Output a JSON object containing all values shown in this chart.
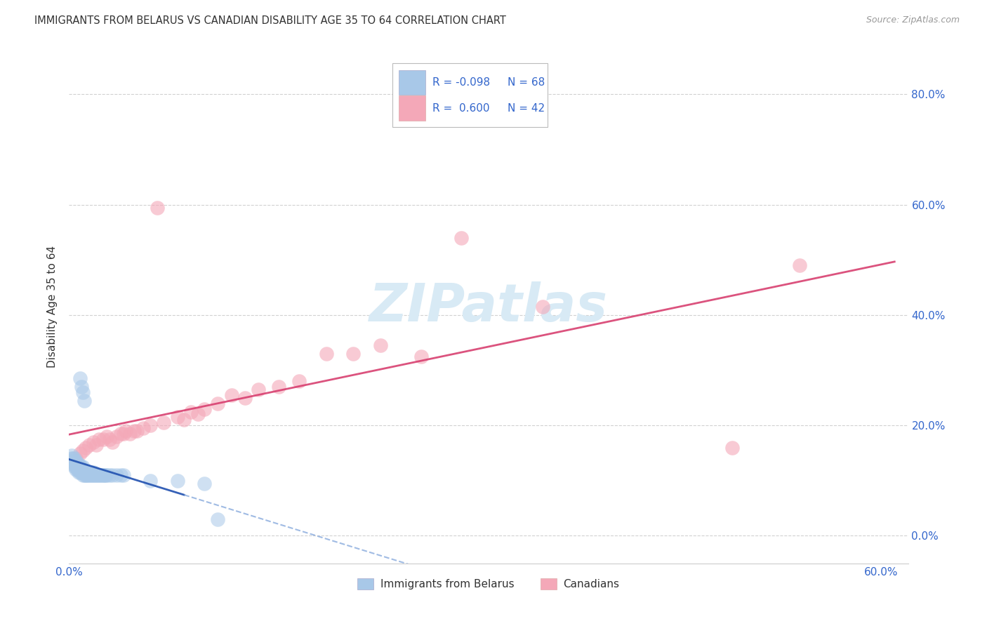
{
  "title": "IMMIGRANTS FROM BELARUS VS CANADIAN DISABILITY AGE 35 TO 64 CORRELATION CHART",
  "source": "Source: ZipAtlas.com",
  "ylabel": "Disability Age 35 to 64",
  "xlim": [
    0.0,
    0.62
  ],
  "ylim": [
    -0.05,
    0.88
  ],
  "yticks": [
    0.0,
    0.2,
    0.4,
    0.6,
    0.8
  ],
  "xticks": [
    0.0,
    0.1,
    0.2,
    0.3,
    0.4,
    0.5,
    0.6
  ],
  "right_ytick_labels": [
    "0.0%",
    "20.0%",
    "40.0%",
    "60.0%",
    "80.0%"
  ],
  "blue_color": "#A8C8E8",
  "pink_color": "#F4A8B8",
  "blue_line_solid_color": "#2050B0",
  "blue_line_dash_color": "#88AADD",
  "pink_line_color": "#D84070",
  "watermark_text": "ZIPatlas",
  "watermark_color": "#D8EAF5",
  "legend_r1": "R = -0.098",
  "legend_n1": "N = 68",
  "legend_r2": "R =  0.600",
  "legend_n2": "N = 42",
  "label_blue": "Immigrants from Belarus",
  "label_pink": "Canadians",
  "text_color_dark": "#333333",
  "text_color_blue": "#3366CC",
  "grid_color": "#CCCCCC",
  "blue_x": [
    0.001,
    0.002,
    0.002,
    0.003,
    0.003,
    0.003,
    0.004,
    0.004,
    0.004,
    0.004,
    0.005,
    0.005,
    0.005,
    0.005,
    0.006,
    0.006,
    0.006,
    0.007,
    0.007,
    0.007,
    0.007,
    0.008,
    0.008,
    0.008,
    0.009,
    0.009,
    0.009,
    0.01,
    0.01,
    0.01,
    0.01,
    0.011,
    0.011,
    0.012,
    0.012,
    0.013,
    0.013,
    0.014,
    0.014,
    0.015,
    0.015,
    0.016,
    0.017,
    0.018,
    0.018,
    0.019,
    0.02,
    0.021,
    0.022,
    0.023,
    0.024,
    0.025,
    0.026,
    0.027,
    0.028,
    0.03,
    0.032,
    0.035,
    0.038,
    0.04,
    0.008,
    0.009,
    0.01,
    0.011,
    0.06,
    0.08,
    0.1,
    0.11
  ],
  "blue_y": [
    0.135,
    0.14,
    0.145,
    0.13,
    0.135,
    0.14,
    0.125,
    0.13,
    0.135,
    0.14,
    0.12,
    0.125,
    0.13,
    0.135,
    0.12,
    0.125,
    0.13,
    0.115,
    0.12,
    0.125,
    0.13,
    0.115,
    0.12,
    0.125,
    0.115,
    0.12,
    0.125,
    0.11,
    0.115,
    0.12,
    0.125,
    0.11,
    0.115,
    0.11,
    0.115,
    0.11,
    0.115,
    0.11,
    0.115,
    0.11,
    0.115,
    0.11,
    0.11,
    0.11,
    0.115,
    0.11,
    0.11,
    0.11,
    0.11,
    0.11,
    0.11,
    0.11,
    0.11,
    0.11,
    0.11,
    0.11,
    0.11,
    0.11,
    0.11,
    0.11,
    0.285,
    0.27,
    0.26,
    0.245,
    0.1,
    0.1,
    0.095,
    0.03
  ],
  "pink_x": [
    0.005,
    0.008,
    0.01,
    0.012,
    0.015,
    0.018,
    0.02,
    0.022,
    0.025,
    0.028,
    0.03,
    0.032,
    0.035,
    0.038,
    0.04,
    0.042,
    0.045,
    0.048,
    0.05,
    0.055,
    0.06,
    0.065,
    0.07,
    0.08,
    0.085,
    0.09,
    0.095,
    0.1,
    0.11,
    0.12,
    0.13,
    0.14,
    0.155,
    0.17,
    0.19,
    0.21,
    0.23,
    0.26,
    0.29,
    0.35,
    0.49,
    0.54
  ],
  "pink_y": [
    0.14,
    0.15,
    0.155,
    0.16,
    0.165,
    0.17,
    0.165,
    0.175,
    0.175,
    0.18,
    0.175,
    0.17,
    0.18,
    0.185,
    0.185,
    0.19,
    0.185,
    0.19,
    0.19,
    0.195,
    0.2,
    0.595,
    0.205,
    0.215,
    0.21,
    0.225,
    0.22,
    0.23,
    0.24,
    0.255,
    0.25,
    0.265,
    0.27,
    0.28,
    0.33,
    0.33,
    0.345,
    0.325,
    0.54,
    0.415,
    0.16,
    0.49
  ]
}
